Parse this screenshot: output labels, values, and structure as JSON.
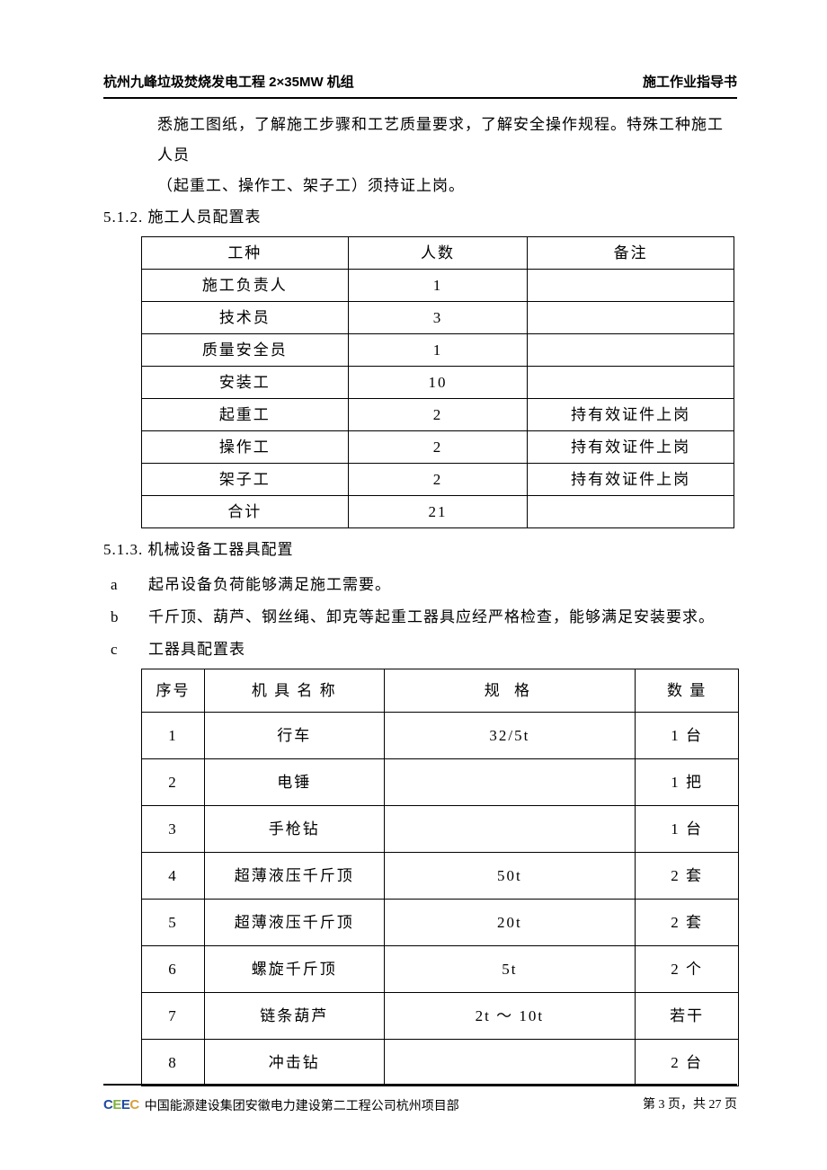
{
  "header": {
    "left": "杭州九峰垃圾焚烧发电工程 2×35MW 机组",
    "right": "施工作业指导书"
  },
  "para1_line1": "悉施工图纸，了解施工步骤和工艺质量要求，了解安全操作规程。特殊工种施工人员",
  "para1_line2": "（起重工、操作工、架子工）须持证上岗。",
  "sec512": "5.1.2.  施工人员配置表",
  "table1": {
    "headers": [
      "工种",
      "人数",
      "备注"
    ],
    "rows": [
      [
        "施工负责人",
        "1",
        ""
      ],
      [
        "技术员",
        "3",
        ""
      ],
      [
        "质量安全员",
        "1",
        ""
      ],
      [
        "安装工",
        "10",
        ""
      ],
      [
        "起重工",
        "2",
        "持有效证件上岗"
      ],
      [
        "操作工",
        "2",
        "持有效证件上岗"
      ],
      [
        "架子工",
        "2",
        "持有效证件上岗"
      ],
      [
        "合计",
        "21",
        ""
      ]
    ]
  },
  "sec513": "5.1.3.  机械设备工器具配置",
  "item_a": {
    "letter": "a",
    "text": "起吊设备负荷能够满足施工需要。"
  },
  "item_b": {
    "letter": "b",
    "text": "千斤顶、葫芦、钢丝绳、卸克等起重工器具应经严格检查，能够满足安装要求。"
  },
  "item_c": {
    "letter": "c",
    "text": "工器具配置表"
  },
  "table2": {
    "headers": [
      "序号",
      "机 具 名 称",
      "规    格",
      "数 量"
    ],
    "rows": [
      [
        "1",
        "行车",
        "32/5t",
        "1 台"
      ],
      [
        "2",
        "电锤",
        "",
        "1 把"
      ],
      [
        "3",
        "手枪钻",
        "",
        "1 台"
      ],
      [
        "4",
        "超薄液压千斤顶",
        "50t",
        "2 套"
      ],
      [
        "5",
        "超薄液压千斤顶",
        "20t",
        "2 套"
      ],
      [
        "6",
        "螺旋千斤顶",
        "5t",
        "2 个"
      ],
      [
        "7",
        "链条葫芦",
        "2t ～ 10t",
        "若干"
      ],
      [
        "8",
        "冲击钻",
        "",
        "2 台"
      ]
    ]
  },
  "footer": {
    "company": "中国能源建设集团安徽电力建设第二工程公司杭州项目部",
    "page": "第 3 页，共 27 页"
  }
}
